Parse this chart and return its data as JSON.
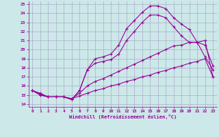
{
  "xlabel": "Windchill (Refroidissement éolien,°C)",
  "bg_color": "#cce8e8",
  "grid_color": "#aaaacc",
  "line_color": "#990099",
  "xlim": [
    -0.5,
    23.5
  ],
  "ylim": [
    13.7,
    25.3
  ],
  "yticks": [
    14,
    15,
    16,
    17,
    18,
    19,
    20,
    21,
    22,
    23,
    24,
    25
  ],
  "xticks": [
    0,
    1,
    2,
    3,
    4,
    5,
    6,
    7,
    8,
    9,
    10,
    11,
    12,
    13,
    14,
    15,
    16,
    17,
    18,
    19,
    20,
    21,
    22,
    23
  ],
  "line1_x": [
    0,
    1,
    2,
    3,
    4,
    5,
    6,
    7,
    8,
    9,
    10,
    11,
    12,
    13,
    14,
    15,
    16,
    17,
    18,
    19,
    20,
    21,
    22,
    23
  ],
  "line1_y": [
    15.5,
    15.0,
    14.8,
    14.8,
    14.8,
    14.5,
    15.5,
    17.8,
    19.0,
    19.2,
    19.5,
    20.5,
    22.3,
    23.2,
    24.1,
    24.8,
    24.8,
    24.5,
    23.5,
    22.8,
    22.2,
    20.8,
    19.2,
    17.8
  ],
  "line2_x": [
    0,
    1,
    2,
    3,
    4,
    5,
    6,
    7,
    8,
    9,
    10,
    11,
    12,
    13,
    14,
    15,
    16,
    17,
    18,
    19,
    20,
    21,
    22,
    23
  ],
  "line2_y": [
    15.5,
    15.0,
    14.8,
    14.8,
    14.8,
    14.5,
    15.5,
    17.8,
    18.5,
    18.7,
    18.9,
    19.5,
    21.0,
    22.0,
    23.0,
    23.8,
    23.8,
    23.5,
    22.5,
    21.5,
    20.8,
    20.8,
    20.5,
    18.2
  ],
  "line3_x": [
    0,
    1,
    2,
    3,
    4,
    5,
    6,
    7,
    8,
    9,
    10,
    11,
    12,
    13,
    14,
    15,
    16,
    17,
    18,
    19,
    20,
    21,
    22,
    23
  ],
  "line3_y": [
    15.5,
    15.2,
    14.8,
    14.8,
    14.8,
    14.6,
    15.2,
    16.0,
    16.5,
    16.8,
    17.2,
    17.6,
    18.0,
    18.4,
    18.8,
    19.2,
    19.6,
    20.0,
    20.4,
    20.5,
    20.8,
    20.8,
    21.0,
    17.0
  ],
  "line4_x": [
    0,
    1,
    2,
    3,
    4,
    5,
    6,
    7,
    8,
    9,
    10,
    11,
    12,
    13,
    14,
    15,
    16,
    17,
    18,
    19,
    20,
    21,
    22,
    23
  ],
  "line4_y": [
    15.5,
    15.1,
    14.8,
    14.8,
    14.8,
    14.6,
    14.9,
    15.2,
    15.5,
    15.7,
    16.0,
    16.2,
    16.5,
    16.7,
    17.0,
    17.2,
    17.5,
    17.7,
    18.0,
    18.2,
    18.5,
    18.7,
    19.0,
    17.0
  ]
}
